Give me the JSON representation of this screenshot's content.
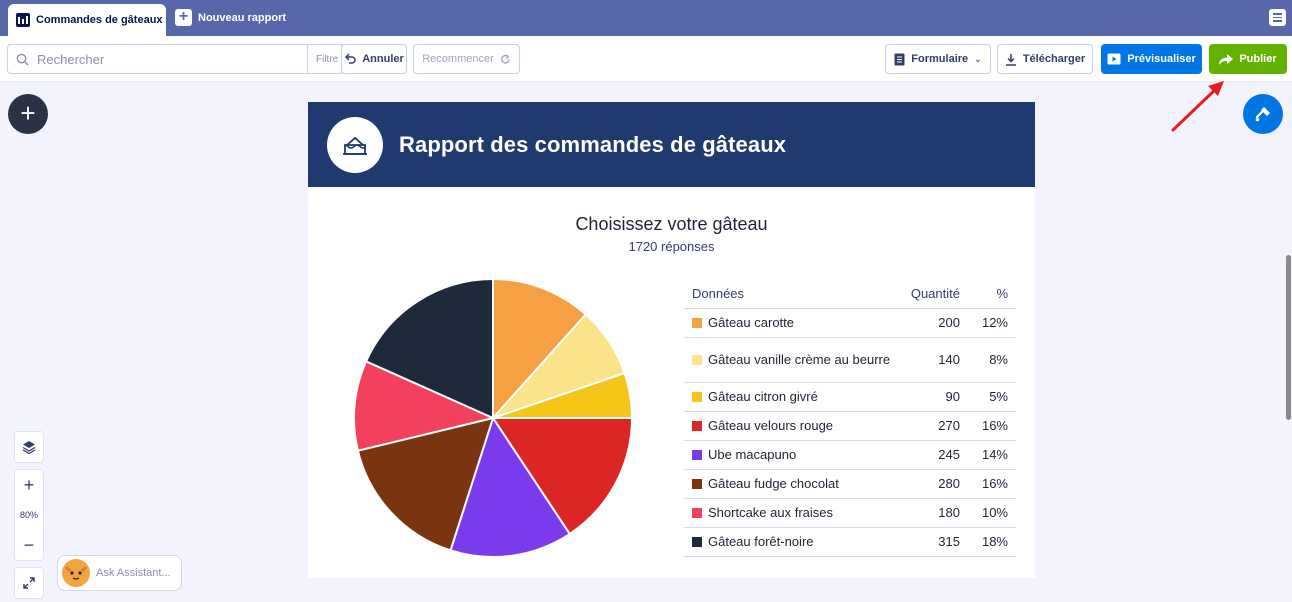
{
  "tabs": {
    "active_label": "Commandes de gâteaux",
    "new_label": "Nouveau rapport"
  },
  "toolbar": {
    "search_placeholder": "Rechercher",
    "filter_label": "Filtre",
    "undo_label": "Annuler",
    "redo_label": "Recommencer",
    "form_label": "Formulaire",
    "download_label": "Télécharger",
    "preview_label": "Prévisualiser",
    "publish_label": "Publier"
  },
  "zoom": {
    "level": "80%"
  },
  "assistant": {
    "label": "Ask Assistant..."
  },
  "report": {
    "title": "Rapport des commandes de gâteaux",
    "chart_title": "Choisissez votre gâteau",
    "responses": "1720 réponses",
    "table_headers": {
      "data": "Données",
      "quantity": "Quantité",
      "percent": "%"
    }
  },
  "colors": {
    "tabbar": "#5867a9",
    "header": "#1f3a6e",
    "preview": "#0075e3",
    "publish": "#64b200"
  },
  "chart_data": {
    "type": "pie",
    "title": "Choisissez votre gâteau",
    "subtitle": "1720 réponses",
    "categories": [
      "Gâteau carotte",
      "Gâteau vanille crème au beurre",
      "Gâteau citron givré",
      "Gâteau velours rouge",
      "Ube macapuno",
      "Gâteau fudge chocolat",
      "Shortcake aux fraises",
      "Gâteau forêt-noire"
    ],
    "values": [
      200,
      140,
      90,
      270,
      245,
      280,
      180,
      315
    ],
    "percents": [
      "12%",
      "8%",
      "5%",
      "16%",
      "14%",
      "16%",
      "10%",
      "18%"
    ],
    "colors": [
      "#f4a043",
      "#fce38a",
      "#f5c518",
      "#dc2626",
      "#7c3aed",
      "#7a3410",
      "#f43f5e",
      "#1e293b"
    ]
  }
}
